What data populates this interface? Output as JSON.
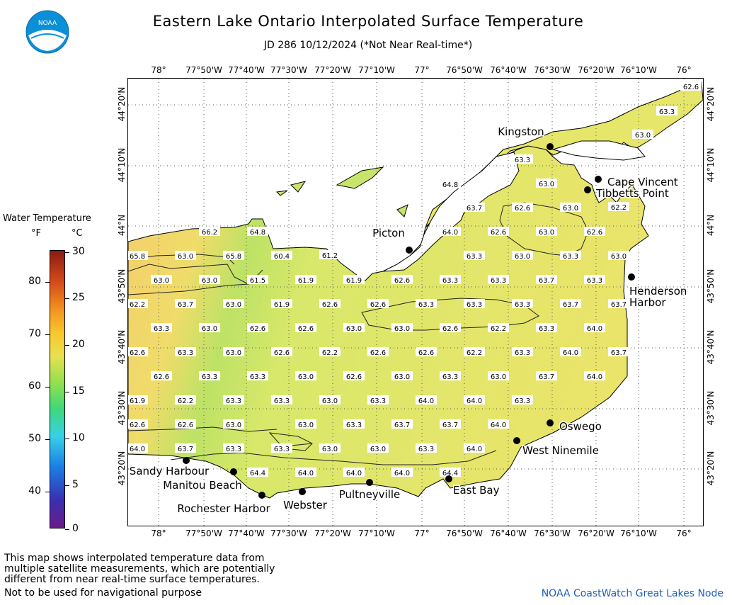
{
  "header": {
    "title": "Eastern Lake Ontario Interpolated Surface Temperature",
    "subtitle": "JD 286 10/12/2024 (*Not Near Real-time*)",
    "logo_text": "NOAA"
  },
  "colorbar": {
    "title": "Water Temperature",
    "unit_f": "°F",
    "unit_c": "°C",
    "f_ticks": [
      "80",
      "70",
      "60",
      "50",
      "40"
    ],
    "c_ticks": [
      "30",
      "25",
      "20",
      "15",
      "10",
      "5",
      "0"
    ]
  },
  "axes": {
    "lon_labels": [
      "78°",
      "77°50'W",
      "77°40'W",
      "77°30'W",
      "77°20'W",
      "77°10'W",
      "77°",
      "76°50'W",
      "76°40'W",
      "76°30'W",
      "76°20'W",
      "76°10'W",
      "76°"
    ],
    "lat_labels": [
      "44°20'N",
      "44°10'N",
      "44°N",
      "43°50'N",
      "43°40'N",
      "43°30'N",
      "43°20'N"
    ],
    "grid": "dotted"
  },
  "places": [
    {
      "name": "Kingston"
    },
    {
      "name": "Cape Vincent"
    },
    {
      "name": "Tibbetts Point"
    },
    {
      "name": "Picton"
    },
    {
      "name": "Henderson"
    },
    {
      "name": "Harbor"
    },
    {
      "name": "Oswego"
    },
    {
      "name": "West Ninemile"
    },
    {
      "name": "East Bay"
    },
    {
      "name": "Pultneyville"
    },
    {
      "name": "Webster"
    },
    {
      "name": "Rochester Harbor"
    },
    {
      "name": "Manitou Beach"
    },
    {
      "name": "Sandy Harbour"
    }
  ],
  "temperature_labels": [
    "62.6",
    "63.3",
    "63.0",
    "63.3",
    "64.8",
    "63.0",
    "63.7",
    "62.6",
    "63.0",
    "62.2",
    "66.2",
    "64.8",
    "64.0",
    "62.6",
    "63.0",
    "62.6",
    "65.8",
    "63.0",
    "65.8",
    "60.4",
    "61.2",
    "63.3",
    "63.0",
    "63.3",
    "63.0",
    "63.0",
    "63.0",
    "61.5",
    "61.9",
    "61.9",
    "62.6",
    "63.3",
    "63.3",
    "63.7",
    "63.3",
    "62.2",
    "63.7",
    "63.0",
    "61.9",
    "62.6",
    "62.6",
    "63.3",
    "63.3",
    "63.3",
    "63.7",
    "63.7",
    "63.3",
    "63.0",
    "62.6",
    "62.6",
    "63.0",
    "63.0",
    "62.6",
    "62.2",
    "63.3",
    "64.0",
    "62.6",
    "63.3",
    "63.0",
    "62.6",
    "62.2",
    "62.6",
    "62.6",
    "62.2",
    "63.3",
    "64.0",
    "63.7",
    "62.6",
    "63.3",
    "63.3",
    "63.0",
    "62.6",
    "63.0",
    "63.3",
    "63.0",
    "63.7",
    "64.0",
    "61.9",
    "62.2",
    "63.3",
    "63.3",
    "63.0",
    "63.3",
    "64.0",
    "64.0",
    "63.3",
    "62.6",
    "62.6",
    "63.0",
    "63.0",
    "63.3",
    "63.7",
    "63.7",
    "64.0",
    "64.0",
    "63.7",
    "63.3",
    "63.3",
    "63.0",
    "63.0",
    "63.3",
    "64.0",
    "64.4",
    "64.0",
    "64.0",
    "64.0",
    "64.4"
  ],
  "footer": {
    "note_lines": [
      "This map shows interpolated temperature data from",
      "multiple satellite measurements, which are potentially",
      "different from near real-time surface temperatures."
    ],
    "disclaimer": "Not to be used for navigational purpose",
    "credit": "NOAA CoastWatch Great Lakes Node"
  }
}
